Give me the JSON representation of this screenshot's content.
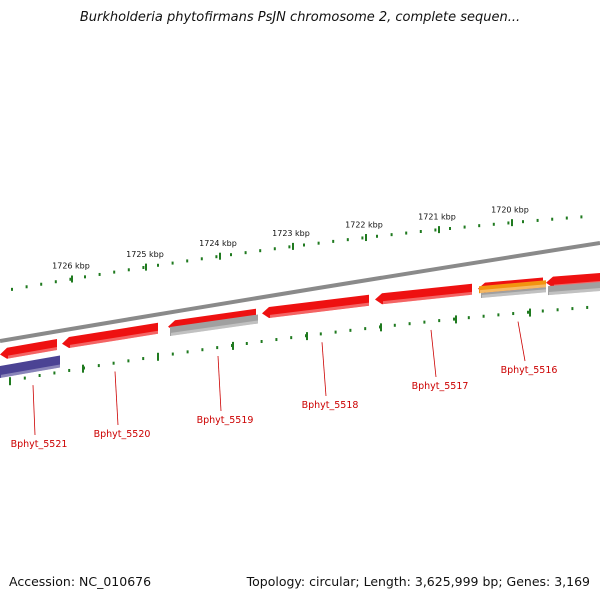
{
  "title": "Burkholderia phytofirmans PsJN chromosome 2, complete sequen...",
  "footer": {
    "accession": "Accession: NC_010676",
    "summary": "Topology: circular; Length: 3,625,999 bp; Genes: 3,169"
  },
  "ruler": {
    "labels": [
      "1726 kbp",
      "1725 kbp",
      "1724 kbp",
      "1723 kbp",
      "1722 kbp",
      "1721 kbp",
      "1720 kbp"
    ]
  },
  "genes": [
    {
      "label": "Bphyt_5521",
      "strand": "reverse",
      "color": "#ee1111",
      "partner_color": "#4b4394"
    },
    {
      "label": "Bphyt_5520",
      "strand": "reverse",
      "color": "#ee1111",
      "partner_color": ""
    },
    {
      "label": "Bphyt_5519",
      "strand": "reverse",
      "color": "#ee1111",
      "partner_color": "#a0a0a0"
    },
    {
      "label": "Bphyt_5518",
      "strand": "reverse",
      "color": "#ee1111",
      "partner_color": ""
    },
    {
      "label": "Bphyt_5517",
      "strand": "reverse",
      "color": "#ee1111",
      "partner_color": ""
    },
    {
      "label": "Bphyt_5516",
      "strand": "reverse",
      "color": "#ee1111",
      "partner_color": "#f29410"
    }
  ],
  "colors": {
    "gene": "#ee1111",
    "pseudo": "#a0a0a0",
    "rna": "#f29410",
    "repeat": "#4b4394",
    "backbone": "#8a8a8a",
    "ticks": "#1f7a1f",
    "label": "#cc0000"
  }
}
